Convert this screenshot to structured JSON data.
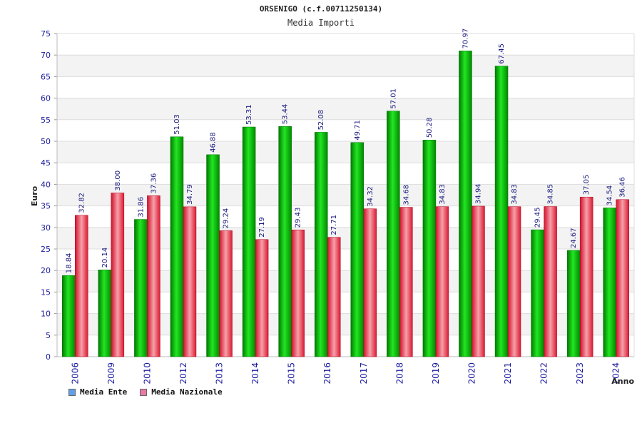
{
  "colors": {
    "ente": "#00b400",
    "nazionale": "#e8283c",
    "axis_text": "#1a1aa0"
  },
  "chart_data": {
    "type": "bar",
    "title": "ORSENIGO (c.f.00711250134)",
    "subtitle": "Media Importi",
    "xlabel": "Anno",
    "ylabel": "Euro",
    "ylim": [
      0,
      75
    ],
    "yticks": [
      0,
      5,
      10,
      15,
      20,
      25,
      30,
      35,
      40,
      45,
      50,
      55,
      60,
      65,
      70,
      75
    ],
    "grid": true,
    "legend_position": "bottom-left",
    "categories": [
      "2006",
      "2009",
      "2010",
      "2012",
      "2013",
      "2014",
      "2015",
      "2016",
      "2017",
      "2018",
      "2019",
      "2020",
      "2021",
      "2022",
      "2023",
      "2024"
    ],
    "series": [
      {
        "name": "Media Ente",
        "values": [
          18.84,
          20.14,
          31.86,
          51.03,
          46.88,
          53.31,
          53.44,
          52.08,
          49.71,
          57.01,
          50.28,
          70.97,
          67.45,
          29.45,
          24.67,
          34.54
        ],
        "labels": [
          "18.84",
          "20.14",
          "31.86",
          "51.03",
          "46.88",
          "53.31",
          "53.44",
          "52.08",
          "49.71",
          "57.01",
          "50.28",
          "70.97",
          "67.45",
          "29.45",
          "24.67",
          "34.54"
        ]
      },
      {
        "name": "Media Nazionale",
        "values": [
          32.82,
          38.0,
          37.36,
          34.79,
          29.24,
          27.19,
          29.43,
          27.71,
          34.32,
          34.68,
          34.83,
          34.94,
          34.83,
          34.85,
          37.05,
          36.46
        ],
        "labels": [
          "32.82",
          "38.00",
          "37.36",
          "34.79",
          "29.24",
          "27.19",
          "29.43",
          "27.71",
          "34.32",
          "34.68",
          "34.83",
          "34.94",
          "34.83",
          "34.85",
          "37.05",
          "36.46"
        ]
      }
    ]
  }
}
